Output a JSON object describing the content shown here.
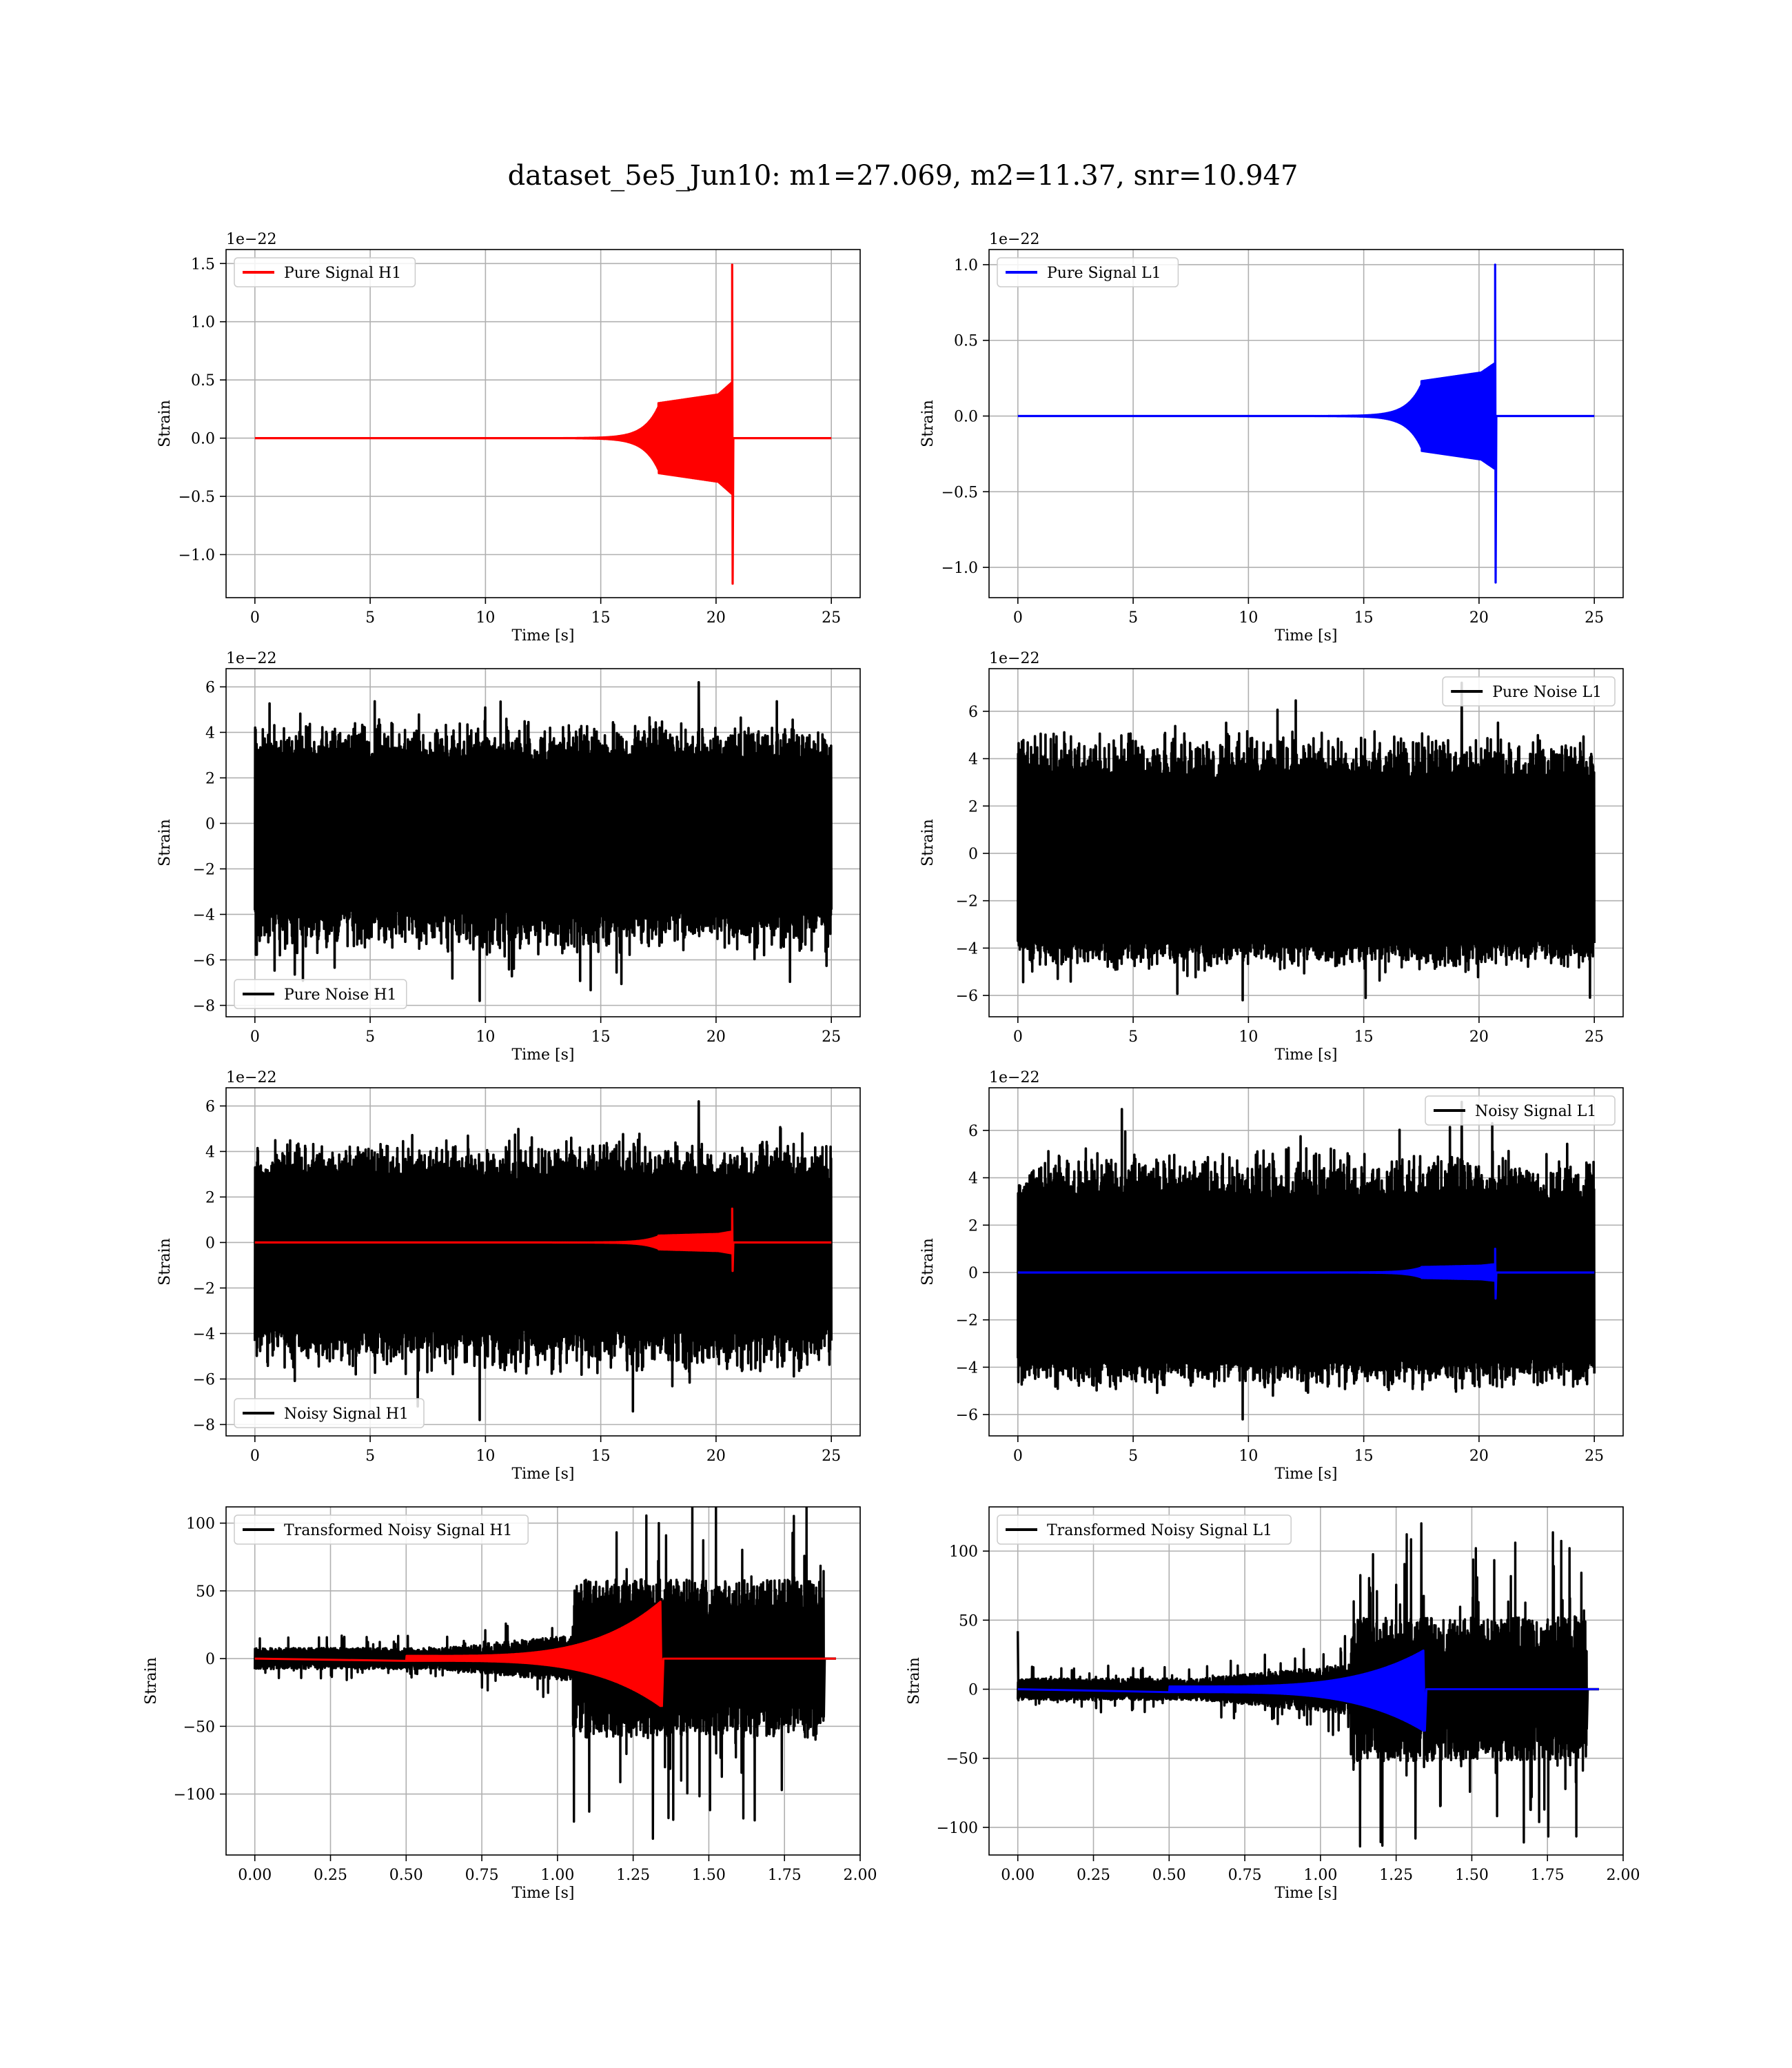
{
  "title": "dataset_5e5_Jun10: m1=27.069, m2=11.37, snr=10.947",
  "colors": {
    "h1_signal": "#ff0000",
    "l1_signal": "#0000ff",
    "noise": "#000000"
  },
  "chart_data": [
    {
      "id": "pure-signal-h1",
      "type": "line",
      "ylabel": "Strain",
      "xlabel": "Time [s]",
      "offset_text": "1e−22",
      "xlim": [
        -1.25,
        26.25
      ],
      "ylim": [
        -1.37,
        1.62
      ],
      "xticks": [
        0,
        5,
        10,
        15,
        20,
        25
      ],
      "xtick_labels": [
        "0",
        "5",
        "10",
        "15",
        "20",
        "25"
      ],
      "yticks": [
        -1.0,
        -0.5,
        0.0,
        0.5,
        1.0,
        1.5
      ],
      "ytick_labels": [
        "−1.0",
        "−0.5",
        "0.0",
        "0.5",
        "1.0",
        "1.5"
      ],
      "legend_loc": "upper left",
      "grid": true,
      "series": [
        {
          "name": "Pure Signal H1",
          "color": "#ff0000",
          "kind": "chirp",
          "chirp": {
            "x_start": 0,
            "x_end": 25,
            "x_merger": 20.7,
            "plateau_amp": 0.3,
            "peak_pos": 1.49,
            "peak_neg": -1.25,
            "pre_peak_amp": 0.48
          }
        }
      ]
    },
    {
      "id": "pure-signal-l1",
      "type": "line",
      "ylabel": "Strain",
      "xlabel": "Time [s]",
      "offset_text": "1e−22",
      "xlim": [
        -1.25,
        26.25
      ],
      "ylim": [
        -1.2,
        1.1
      ],
      "xticks": [
        0,
        5,
        10,
        15,
        20,
        25
      ],
      "xtick_labels": [
        "0",
        "5",
        "10",
        "15",
        "20",
        "25"
      ],
      "yticks": [
        -1.0,
        -0.5,
        0.0,
        0.5,
        1.0
      ],
      "ytick_labels": [
        "−1.0",
        "−0.5",
        "0.0",
        "0.5",
        "1.0"
      ],
      "legend_loc": "upper left",
      "grid": true,
      "series": [
        {
          "name": "Pure Signal L1",
          "color": "#0000ff",
          "kind": "chirp",
          "chirp": {
            "x_start": 0,
            "x_end": 25,
            "x_merger": 20.7,
            "plateau_amp": 0.23,
            "peak_pos": 1.0,
            "peak_neg": -1.1,
            "pre_peak_amp": 0.35
          }
        }
      ]
    },
    {
      "id": "pure-noise-h1",
      "type": "line",
      "ylabel": "Strain",
      "xlabel": "Time [s]",
      "offset_text": "1e−22",
      "xlim": [
        -1.25,
        26.25
      ],
      "ylim": [
        -8.5,
        6.8
      ],
      "xticks": [
        0,
        5,
        10,
        15,
        20,
        25
      ],
      "xtick_labels": [
        "0",
        "5",
        "10",
        "15",
        "20",
        "25"
      ],
      "yticks": [
        -8,
        -6,
        -4,
        -2,
        0,
        2,
        4,
        6
      ],
      "ytick_labels": [
        "−8",
        "−6",
        "−4",
        "−2",
        "0",
        "2",
        "4",
        "6"
      ],
      "legend_loc": "lower left",
      "grid": true,
      "series": [
        {
          "name": "Pure Noise H1",
          "color": "#000000",
          "kind": "noise",
          "noise": {
            "x_start": 0,
            "x_end": 25,
            "band_low": -3.7,
            "band_high": 2.7,
            "max": 6.2,
            "min": -7.8
          }
        }
      ]
    },
    {
      "id": "pure-noise-l1",
      "type": "line",
      "ylabel": "Strain",
      "xlabel": "Time [s]",
      "offset_text": "1e−22",
      "xlim": [
        -1.25,
        26.25
      ],
      "ylim": [
        -6.9,
        7.8
      ],
      "xticks": [
        0,
        5,
        10,
        15,
        20,
        25
      ],
      "xtick_labels": [
        "0",
        "5",
        "10",
        "15",
        "20",
        "25"
      ],
      "yticks": [
        -6,
        -4,
        -2,
        0,
        2,
        4,
        6
      ],
      "ytick_labels": [
        "−6",
        "−4",
        "−2",
        "0",
        "2",
        "4",
        "6"
      ],
      "legend_loc": "upper right",
      "grid": true,
      "series": [
        {
          "name": "Pure Noise L1",
          "color": "#000000",
          "kind": "noise",
          "noise": {
            "x_start": 0,
            "x_end": 25,
            "band_low": -3.6,
            "band_high": 3.0,
            "max": 7.2,
            "min": -6.2
          }
        }
      ]
    },
    {
      "id": "noisy-signal-h1",
      "type": "line",
      "ylabel": "Strain",
      "xlabel": "Time [s]",
      "offset_text": "1e−22",
      "xlim": [
        -1.25,
        26.25
      ],
      "ylim": [
        -8.5,
        6.8
      ],
      "xticks": [
        0,
        5,
        10,
        15,
        20,
        25
      ],
      "xtick_labels": [
        "0",
        "5",
        "10",
        "15",
        "20",
        "25"
      ],
      "yticks": [
        -8,
        -6,
        -4,
        -2,
        0,
        2,
        4,
        6
      ],
      "ytick_labels": [
        "−8",
        "−6",
        "−4",
        "−2",
        "0",
        "2",
        "4",
        "6"
      ],
      "legend_loc": "lower left",
      "grid": true,
      "series": [
        {
          "name": "Noisy Signal H1",
          "color": "#000000",
          "kind": "noise",
          "noise": {
            "x_start": 0,
            "x_end": 25,
            "band_low": -3.7,
            "band_high": 2.7,
            "max": 6.2,
            "min": -7.8
          }
        },
        {
          "name": "",
          "color": "#ff0000",
          "kind": "chirp",
          "chirp": {
            "x_start": 0,
            "x_end": 25,
            "x_merger": 20.7,
            "plateau_amp": 0.3,
            "peak_pos": 1.49,
            "peak_neg": -1.25,
            "pre_peak_amp": 0.48
          }
        }
      ]
    },
    {
      "id": "noisy-signal-l1",
      "type": "line",
      "ylabel": "Strain",
      "xlabel": "Time [s]",
      "offset_text": "1e−22",
      "xlim": [
        -1.25,
        26.25
      ],
      "ylim": [
        -6.9,
        7.8
      ],
      "xticks": [
        0,
        5,
        10,
        15,
        20,
        25
      ],
      "xtick_labels": [
        "0",
        "5",
        "10",
        "15",
        "20",
        "25"
      ],
      "yticks": [
        -6,
        -4,
        -2,
        0,
        2,
        4,
        6
      ],
      "ytick_labels": [
        "−6",
        "−4",
        "−2",
        "0",
        "2",
        "4",
        "6"
      ],
      "legend_loc": "upper right",
      "grid": true,
      "series": [
        {
          "name": "Noisy Signal L1",
          "color": "#000000",
          "kind": "noise",
          "noise": {
            "x_start": 0,
            "x_end": 25,
            "band_low": -3.6,
            "band_high": 3.0,
            "max": 7.2,
            "min": -6.2
          }
        },
        {
          "name": "",
          "color": "#0000ff",
          "kind": "chirp",
          "chirp": {
            "x_start": 0,
            "x_end": 25,
            "x_merger": 20.7,
            "plateau_amp": 0.23,
            "peak_pos": 1.0,
            "peak_neg": -1.1,
            "pre_peak_amp": 0.35
          }
        }
      ]
    },
    {
      "id": "transformed-noisy-signal-h1",
      "type": "line",
      "ylabel": "Strain",
      "xlabel": "Time [s]",
      "offset_text": "",
      "xlim": [
        -0.095,
        2.0
      ],
      "ylim": [
        -145,
        112
      ],
      "xticks": [
        0,
        0.25,
        0.5,
        0.75,
        1.0,
        1.25,
        1.5,
        1.75,
        2.0
      ],
      "xtick_labels": [
        "0.00",
        "0.25",
        "0.50",
        "0.75",
        "1.00",
        "1.25",
        "1.50",
        "1.75",
        "2.00"
      ],
      "yticks": [
        -100,
        -50,
        0,
        50,
        100
      ],
      "ytick_labels": [
        "−100",
        "−50",
        "0",
        "50",
        "100"
      ],
      "legend_loc": "upper left",
      "grid": true,
      "series": [
        {
          "name": "Transformed Noisy Signal H1",
          "color": "#000000",
          "kind": "whitened",
          "whitened": {
            "x_start": 0,
            "x_end": 1.88,
            "x_growth": 1.05,
            "early_amp": 6,
            "late_amp": 45,
            "max": 100,
            "min": -133,
            "tail_x": 1.92
          }
        },
        {
          "name": "",
          "color": "#ff0000",
          "kind": "whitened-chirp",
          "chirp": {
            "x_start": 0,
            "x_end": 1.92,
            "x_merger": 1.34,
            "peak_pos": 42,
            "peak_neg": -35
          }
        }
      ]
    },
    {
      "id": "transformed-noisy-signal-l1",
      "type": "line",
      "ylabel": "Strain",
      "xlabel": "Time [s]",
      "offset_text": "",
      "xlim": [
        -0.095,
        2.0
      ],
      "ylim": [
        -120,
        132
      ],
      "xticks": [
        0,
        0.25,
        0.5,
        0.75,
        1.0,
        1.25,
        1.5,
        1.75,
        2.0
      ],
      "xtick_labels": [
        "0.00",
        "0.25",
        "0.50",
        "0.75",
        "1.00",
        "1.25",
        "1.50",
        "1.75",
        "2.00"
      ],
      "yticks": [
        -100,
        -50,
        0,
        50,
        100
      ],
      "ytick_labels": [
        "−100",
        "−50",
        "0",
        "50",
        "100"
      ],
      "legend_loc": "upper left",
      "grid": true,
      "series": [
        {
          "name": "Transformed Noisy Signal L1",
          "color": "#000000",
          "kind": "whitened",
          "whitened": {
            "x_start": 0,
            "x_end": 1.88,
            "x_growth": 1.1,
            "early_amp": 6,
            "late_amp": 40,
            "max": 120,
            "min": -108,
            "tail_x": 1.92,
            "spike_at_start": 42
          }
        },
        {
          "name": "",
          "color": "#0000ff",
          "kind": "whitened-chirp",
          "chirp": {
            "x_start": 0,
            "x_end": 1.92,
            "x_merger": 1.34,
            "peak_pos": 28,
            "peak_neg": -30
          }
        }
      ]
    }
  ]
}
